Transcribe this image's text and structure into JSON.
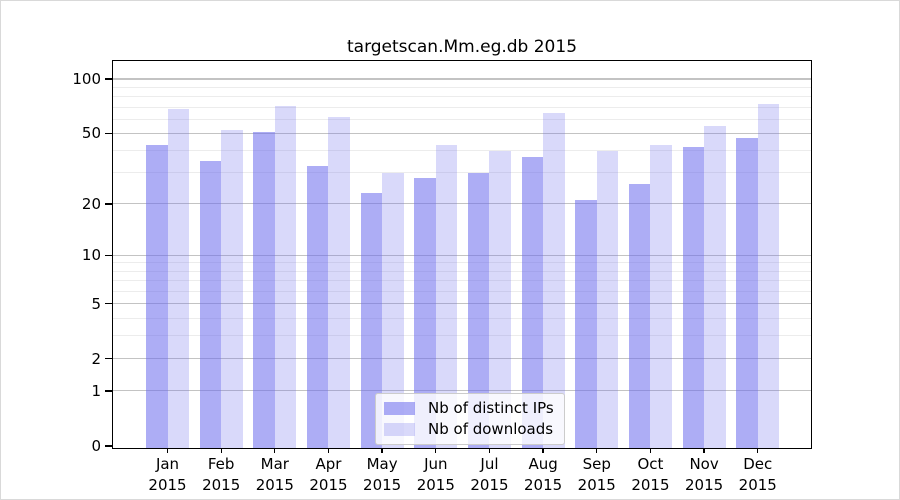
{
  "chart_data": {
    "type": "bar",
    "title": "targetscan.Mm.eg.db 2015",
    "categories": [
      "Jan",
      "Feb",
      "Mar",
      "Apr",
      "May",
      "Jun",
      "Jul",
      "Aug",
      "Sep",
      "Oct",
      "Nov",
      "Dec"
    ],
    "category_year": "2015",
    "series": [
      {
        "name": "Nb of distinct IPs",
        "color": "rgba(105,105,237,0.55)",
        "values": [
          43,
          35,
          51,
          33,
          23,
          28,
          30,
          37,
          21,
          26,
          42,
          47
        ]
      },
      {
        "name": "Nb of downloads",
        "color": "rgba(105,105,237,0.25)",
        "values": [
          68,
          52,
          71,
          62,
          30,
          43,
          40,
          65,
          40,
          43,
          55,
          73
        ]
      }
    ],
    "xlabel": "",
    "ylabel": "",
    "yscale": "log2(1+x)",
    "yticks": [
      0,
      1,
      2,
      5,
      10,
      20,
      50,
      100
    ],
    "yticks_minor": [
      3,
      4,
      6,
      7,
      8,
      9,
      30,
      40,
      60,
      70,
      80,
      90
    ],
    "ylim": [
      0,
      126
    ],
    "grid": "horizontal",
    "legend_position": "lower center",
    "colors": {
      "bar_base": "#6969ed",
      "major_grid": "#c3c3c3",
      "minor_grid": "#ececec",
      "frame": "#000000"
    }
  }
}
